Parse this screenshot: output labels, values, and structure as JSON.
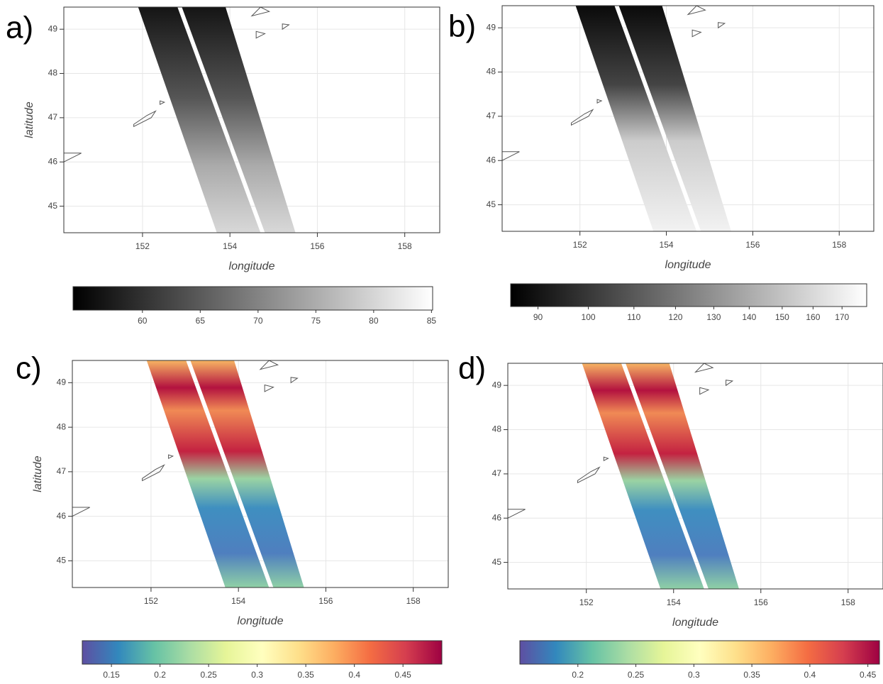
{
  "chart_data": [
    {
      "type": "heatmap",
      "label": "a)",
      "xlabel": "longitude",
      "ylabel": "latitude",
      "xlim": [
        150.2,
        158.8
      ],
      "xticks": [
        152,
        154,
        156,
        158
      ],
      "ylim": [
        44.4,
        49.5
      ],
      "yticks": [
        45,
        46,
        47,
        48,
        49
      ],
      "grid": true,
      "colorbar": {
        "lim": [
          54,
          85.1
        ],
        "ticks": [
          60,
          65,
          70,
          75,
          80,
          85
        ],
        "log": false,
        "colors": [
          "#000000",
          "#ffffff"
        ]
      }
    },
    {
      "type": "heatmap",
      "label": "b)",
      "xlabel": "longitude",
      "xlim": [
        150.2,
        158.8
      ],
      "xticks": [
        152,
        154,
        156,
        158
      ],
      "ylim": [
        44.4,
        49.5
      ],
      "yticks": [
        45,
        46,
        47,
        48,
        49
      ],
      "grid": true,
      "colorbar": {
        "lim": [
          85,
          179
        ],
        "ticks": [
          90,
          100,
          110,
          120,
          130,
          140,
          150,
          160,
          170
        ],
        "log": true,
        "colors": [
          "#000000",
          "#ffffff"
        ]
      }
    },
    {
      "type": "heatmap",
      "label": "c)",
      "xlabel": "longitude",
      "ylabel": "latitude",
      "xlim": [
        150.2,
        158.8
      ],
      "xticks": [
        152,
        154,
        156,
        158
      ],
      "ylim": [
        44.4,
        49.5
      ],
      "yticks": [
        45,
        46,
        47,
        48,
        49
      ],
      "grid": true,
      "colorbar": {
        "lim": [
          0.12,
          0.49
        ],
        "ticks": [
          0.15,
          0.2,
          0.25,
          0.3,
          0.35,
          0.4,
          0.45
        ],
        "log": false,
        "colors": [
          "#5e4fa2",
          "#3288bd",
          "#66c2a5",
          "#abdda4",
          "#e6f598",
          "#ffffbf",
          "#fee08b",
          "#fdae61",
          "#f46d43",
          "#d53e4f",
          "#9e0142"
        ]
      }
    },
    {
      "type": "heatmap",
      "label": "d)",
      "xlabel": "longitude",
      "xlim": [
        150.2,
        158.8
      ],
      "xticks": [
        152,
        154,
        156,
        158
      ],
      "ylim": [
        44.4,
        49.5
      ],
      "yticks": [
        45,
        46,
        47,
        48,
        49
      ],
      "grid": true,
      "colorbar": {
        "lim": [
          0.15,
          0.46
        ],
        "ticks": [
          0.2,
          0.25,
          0.3,
          0.35,
          0.4,
          0.45
        ],
        "log": false,
        "colors": [
          "#5e4fa2",
          "#3288bd",
          "#66c2a5",
          "#abdda4",
          "#e6f598",
          "#ffffbf",
          "#fee08b",
          "#fdae61",
          "#f46d43",
          "#d53e4f",
          "#9e0142"
        ]
      }
    }
  ]
}
